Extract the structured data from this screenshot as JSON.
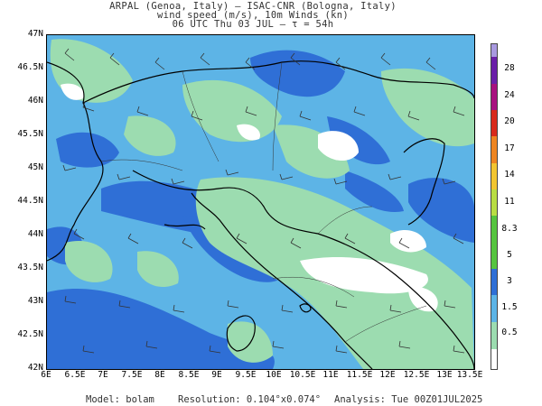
{
  "header": {
    "line1": "ARPAL (Genoa, Italy)  –  ISAC-CNR (Bologna, Italy)",
    "line2": "wind speed (m/s), 10m Winds (kn)",
    "line3": "06 UTC Thu 03 JUL  –  τ = 54h"
  },
  "axes": {
    "lat_labels": [
      "47N",
      "46.5N",
      "46N",
      "45.5N",
      "45N",
      "44.5N",
      "44N",
      "43.5N",
      "43N",
      "42.5N",
      "42N"
    ],
    "lon_labels": [
      "6E",
      "6.5E",
      "7E",
      "7.5E",
      "8E",
      "8.5E",
      "9E",
      "9.5E",
      "10E",
      "10.5E",
      "11E",
      "11.5E",
      "12E",
      "12.5E",
      "13E",
      "13.5E"
    ]
  },
  "colorbar": {
    "levels": [
      "0.5",
      "1.5",
      "3",
      "5",
      "8.3",
      "11",
      "14",
      "17",
      "20",
      "24",
      "28"
    ],
    "colors": {
      "calm": "#ffffff",
      "light": "#9cdcb0",
      "moderate": "#5db4e6",
      "fresh": "#2f6fd6",
      "strong": "#55c43f",
      "c11": "#b8dd44",
      "c14": "#f2c531",
      "c17": "#ee8522",
      "c20": "#d82a1c",
      "c24": "#a8107f",
      "c28": "#6a1fa8",
      "top": "#a899e0"
    }
  },
  "footer": {
    "model": "Model: bolam",
    "resolution": "Resolution: 0.104°x0.074°",
    "analysis": "Analysis: Tue 00Z01JUL2025"
  }
}
